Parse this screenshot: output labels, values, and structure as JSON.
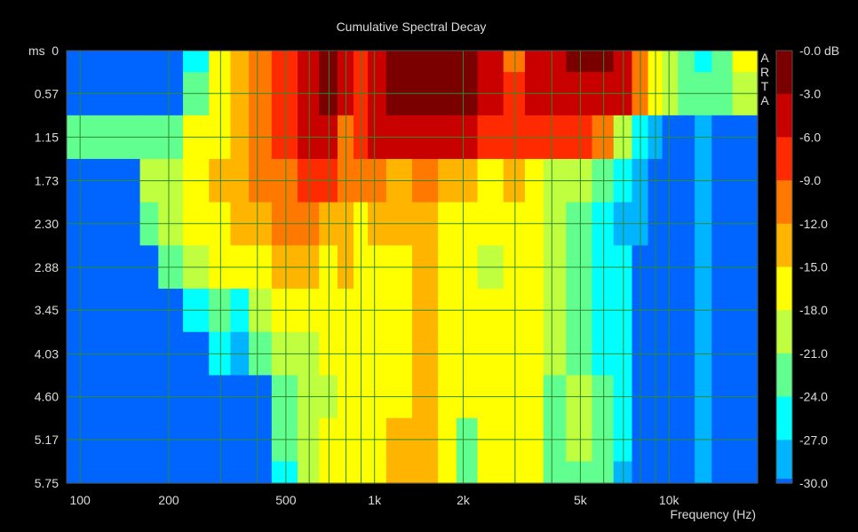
{
  "chart_data": {
    "type": "heatmap",
    "title": "Cumulative Spectral Decay",
    "watermark": "ARTA",
    "xlabel": "Frequency (Hz)",
    "ylabel": "ms",
    "x_scale": "log",
    "xlim": [
      90,
      20000
    ],
    "ylim": [
      0,
      5.75
    ],
    "x_ticks": [
      {
        "value": 100,
        "label": "100"
      },
      {
        "value": 200,
        "label": "200"
      },
      {
        "value": 500,
        "label": "500"
      },
      {
        "value": 1000,
        "label": "1k"
      },
      {
        "value": 2000,
        "label": "2k"
      },
      {
        "value": 5000,
        "label": "5k"
      },
      {
        "value": 10000,
        "label": "10k"
      }
    ],
    "x_grid": [
      100,
      200,
      300,
      400,
      500,
      600,
      700,
      800,
      900,
      1000,
      2000,
      3000,
      4000,
      5000,
      6000,
      7000,
      8000,
      9000,
      10000
    ],
    "y_ticks": [
      {
        "value": 0,
        "label": "0"
      },
      {
        "value": 0.57,
        "label": "0.57"
      },
      {
        "value": 1.15,
        "label": "1.15"
      },
      {
        "value": 1.73,
        "label": "1.73"
      },
      {
        "value": 2.3,
        "label": "2.30"
      },
      {
        "value": 2.88,
        "label": "2.88"
      },
      {
        "value": 3.45,
        "label": "3.45"
      },
      {
        "value": 4.03,
        "label": "4.03"
      },
      {
        "value": 4.6,
        "label": "4.60"
      },
      {
        "value": 5.17,
        "label": "5.17"
      },
      {
        "value": 5.75,
        "label": "5.75"
      }
    ],
    "grid": true,
    "colorbar": {
      "unit": "dB",
      "levels": [
        {
          "label": "-0.0",
          "color": "#7a0000"
        },
        {
          "label": "-3.0",
          "color": "#c80000"
        },
        {
          "label": "-6.0",
          "color": "#ff2a00"
        },
        {
          "label": "-9.0",
          "color": "#ff7800"
        },
        {
          "label": "-12.0",
          "color": "#ffb400"
        },
        {
          "label": "-15.0",
          "color": "#ffff00"
        },
        {
          "label": "-18.0",
          "color": "#c0ff40"
        },
        {
          "label": "-21.0",
          "color": "#60ff90"
        },
        {
          "label": "-24.0",
          "color": "#00ffff"
        },
        {
          "label": "-27.0",
          "color": "#00b4ff"
        },
        {
          "label": "-30.0",
          "color": "#0064ff"
        }
      ]
    },
    "frequencies_hz": [
      150,
      170,
      200,
      250,
      300,
      350,
      400,
      500,
      600,
      700,
      800,
      900,
      1000,
      1200,
      1500,
      1800,
      2000,
      2500,
      3000,
      3500,
      4000,
      5000,
      6000,
      7000,
      8000,
      9000,
      10000,
      11500,
      13000,
      15000,
      18000
    ],
    "times_ms": [
      0,
      0.57,
      1.15,
      1.73,
      2.3,
      2.88,
      3.45,
      4.03,
      4.6,
      5.17,
      5.75
    ],
    "levels_db": [
      [
        -30,
        -30,
        -30,
        -24,
        -17,
        -13,
        -11,
        -7,
        -3,
        -2,
        -4,
        -8,
        -4,
        -2,
        -0.5,
        -0.3,
        -0.5,
        -4,
        -9,
        -3,
        -3,
        -2,
        -2,
        -3,
        -10,
        -15,
        -19,
        -23,
        -24,
        -21,
        -17
      ],
      [
        -30,
        -30,
        -30,
        -22,
        -16,
        -13,
        -10,
        -7,
        -4,
        -2,
        -4,
        -8,
        -5,
        -2,
        -1,
        -0.5,
        -1,
        -4,
        -8,
        -3,
        -3,
        -3,
        -3,
        -4,
        -10,
        -15,
        -19,
        -22,
        -23,
        -21,
        -18
      ],
      [
        -22,
        -22,
        -21,
        -17,
        -15,
        -14,
        -10,
        -6,
        -4,
        -4,
        -9,
        -7,
        -4,
        -5,
        -5,
        -4,
        -5,
        -7,
        -8,
        -7,
        -7,
        -7,
        -10,
        -18,
        -26,
        -28,
        -30,
        -30,
        -28,
        -30,
        -30
      ],
      [
        -30,
        -19,
        -19,
        -17,
        -14,
        -13,
        -11,
        -9,
        -7,
        -8,
        -10,
        -9,
        -11,
        -13,
        -10,
        -13,
        -14,
        -15,
        -14,
        -16,
        -18,
        -19,
        -22,
        -25,
        -28,
        -30,
        -30,
        -30,
        -27,
        -30,
        -30
      ],
      [
        -30,
        -21,
        -18,
        -17,
        -16,
        -14,
        -12,
        -11,
        -10,
        -14,
        -13,
        -15,
        -14,
        -13,
        -13,
        -16,
        -15,
        -16,
        -15,
        -17,
        -19,
        -21,
        -24,
        -27,
        -28,
        -30,
        -30,
        -30,
        -27,
        -30,
        -30
      ],
      [
        -30,
        -30,
        -22,
        -19,
        -17,
        -17,
        -15,
        -14,
        -13,
        -16,
        -14,
        -16,
        -16,
        -15,
        -14,
        -17,
        -16,
        -18,
        -16,
        -17,
        -20,
        -21,
        -25,
        -26,
        -30,
        -30,
        -30,
        -30,
        -27,
        -30,
        -30
      ],
      [
        -30,
        -30,
        -30,
        -24,
        -21,
        -24,
        -18,
        -17,
        -15,
        -17,
        -15,
        -16,
        -16,
        -15,
        -14,
        -17,
        -16,
        -17,
        -16,
        -17,
        -20,
        -21,
        -24,
        -25,
        -30,
        -30,
        -30,
        -30,
        -27,
        -30,
        -30
      ],
      [
        -30,
        -30,
        -30,
        -30,
        -24,
        -27,
        -22,
        -20,
        -18,
        -17,
        -16,
        -17,
        -16,
        -15,
        -14,
        -17,
        -16,
        -17,
        -16,
        -17,
        -20,
        -21,
        -24,
        -25,
        -30,
        -30,
        -30,
        -30,
        -27,
        -30,
        -30
      ],
      [
        -30,
        -30,
        -30,
        -30,
        -30,
        -30,
        -30,
        -21,
        -19,
        -18,
        -17,
        -17,
        -16,
        -15,
        -14,
        -16,
        -15,
        -17,
        -16,
        -17,
        -21,
        -20,
        -23,
        -26,
        -30,
        -30,
        -30,
        -30,
        -27,
        -30,
        -30
      ],
      [
        -30,
        -30,
        -30,
        -30,
        -30,
        -30,
        -30,
        -23,
        -20,
        -17,
        -17,
        -17,
        -16,
        -14,
        -14,
        -17,
        -22,
        -16,
        -17,
        -17,
        -22,
        -20,
        -22,
        -26,
        -30,
        -30,
        -30,
        -30,
        -27,
        -30,
        -30
      ],
      [
        -30,
        -30,
        -30,
        -30,
        -30,
        -30,
        -30,
        -25,
        -19,
        -17,
        -16,
        -17,
        -16,
        -13,
        -14,
        -16,
        -23,
        -15,
        -16,
        -17,
        -22,
        -21,
        -21,
        -27,
        -30,
        -30,
        -30,
        -30,
        -27,
        -30,
        -30
      ]
    ]
  }
}
